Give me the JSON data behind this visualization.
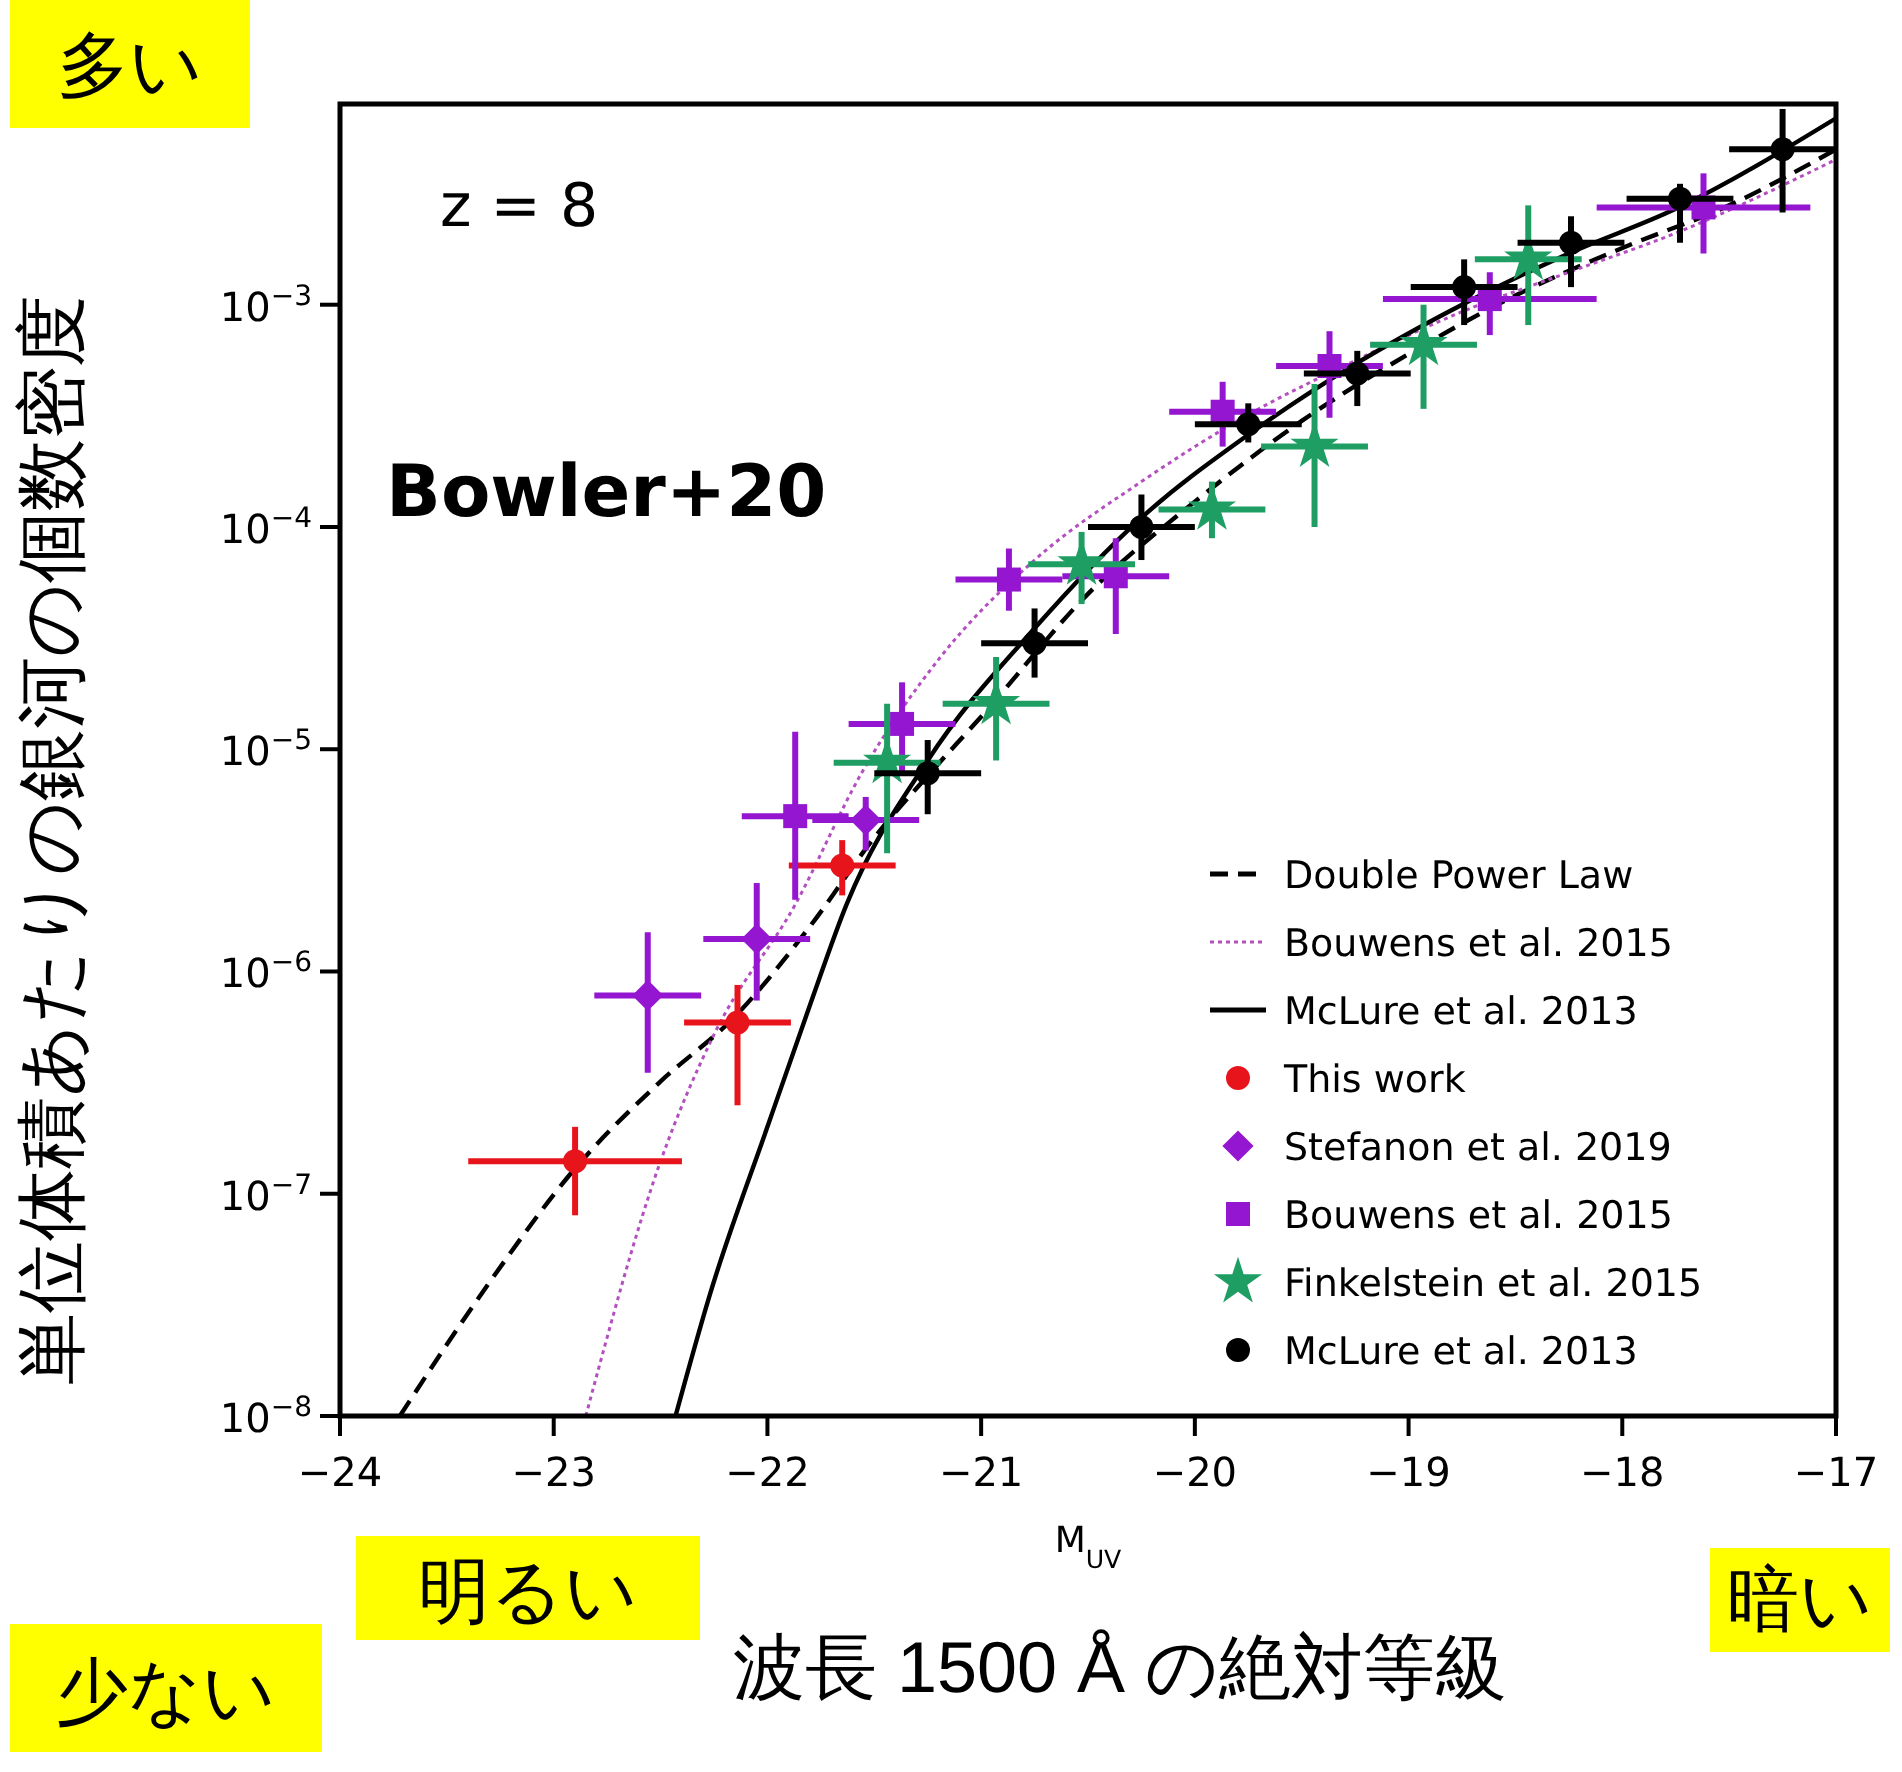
{
  "chart_data": {
    "type": "scatter",
    "xlabel": "M$_{UV}$",
    "ylabel": "単位体積あたりの銀河の個数密度",
    "annotations": [
      "z = 8",
      "Bowler+20",
      "多い",
      "少ない",
      "明るい",
      "暗い",
      "波長 1500 Å の絶対等級"
    ],
    "xlim": [
      -24,
      -17
    ],
    "xticks": [
      {
        "value": -24,
        "label": "−24"
      },
      {
        "value": -23,
        "label": "−23"
      },
      {
        "value": -22,
        "label": "−22"
      },
      {
        "value": -21,
        "label": "−21"
      },
      {
        "value": -20,
        "label": "−20"
      },
      {
        "value": -19,
        "label": "−19"
      },
      {
        "value": -18,
        "label": "−18"
      },
      {
        "value": -17,
        "label": "−17"
      }
    ],
    "ylim": [
      1e-08,
      0.008
    ],
    "log": "y",
    "yticks": [
      {
        "value": 1e-08,
        "label": "10$^{−8}$"
      },
      {
        "value": 1e-07,
        "label": "10$^{−7}$"
      },
      {
        "value": 1e-06,
        "label": "10$^{−6}$"
      },
      {
        "value": 1e-05,
        "label": "10$^{−5}$"
      },
      {
        "value": 0.0001,
        "label": "10$^{−4}$"
      },
      {
        "value": 0.001,
        "label": "10$^{−3}$"
      }
    ],
    "legend": "bottom right",
    "series": [
      {
        "name": "Double Power Law",
        "type": "line",
        "color": "#000000",
        "line_style": "dashed",
        "x": [
          -23.72,
          -23.3,
          -22.9,
          -22.5,
          -22.15,
          -21.8,
          -21.5,
          -21.25,
          -21,
          -20.5,
          -20,
          -19.5,
          -19,
          -18.5,
          -18,
          -17.5,
          -17
        ],
        "values": [
          1e-08,
          4e-08,
          1.3e-07,
          3.2e-07,
          6.3e-07,
          1.6e-06,
          4e-06,
          7.6e-06,
          1.4e-05,
          5e-05,
          0.00013,
          0.0003,
          0.0006,
          0.0011,
          0.0018,
          0.0028,
          0.005
        ]
      },
      {
        "name": "Bouwens et al. 2015",
        "type": "line",
        "color": "#b44fc0",
        "line_style": "dotted",
        "x": [
          -22.85,
          -22.5,
          -22.25,
          -21.87,
          -21.56,
          -21.19,
          -20.75,
          -20.25,
          -19.75,
          -19.25,
          -18.75,
          -18.25,
          -17.75,
          -17
        ],
        "values": [
          1e-08,
          1.4e-07,
          5.2e-07,
          2e-06,
          7.8e-06,
          2.6e-05,
          7.1e-05,
          0.00016,
          0.00032,
          0.00056,
          0.00093,
          0.0014,
          0.0021,
          0.0045
        ]
      },
      {
        "name": "McLure et al. 2013",
        "type": "line",
        "color": "#000000",
        "line_style": "solid",
        "x": [
          -22.43,
          -22.27,
          -22,
          -21.8,
          -21.63,
          -21.25,
          -20.75,
          -20.25,
          -19.75,
          -19.25,
          -18.75,
          -18.25,
          -17.75,
          -17
        ],
        "values": [
          1e-08,
          3.5e-08,
          2e-07,
          7.1e-07,
          2e-06,
          8.9e-06,
          3.5e-05,
          0.00011,
          0.00026,
          0.00054,
          0.001,
          0.0017,
          0.0027,
          0.0069
        ]
      },
      {
        "name": "This work",
        "color": "#e8141b",
        "marker": "circle",
        "x": [
          -22.9,
          -22.14,
          -21.65
        ],
        "values": [
          1.4e-07,
          5.9e-07,
          3e-06
        ],
        "errors": [
          [
            8e-08,
            2e-07
          ],
          [
            2.5e-07,
            8.7e-07
          ],
          [
            2.2e-06,
            3.9e-06
          ]
        ],
        "xerrors": [
          0.5,
          0.25,
          0.25
        ]
      },
      {
        "name": "Stefanon et al. 2019",
        "color": "#9416d0",
        "marker": "diamond",
        "x": [
          -22.56,
          -22.05,
          -21.54
        ],
        "values": [
          7.8e-07,
          1.4e-06,
          4.8e-06
        ],
        "errors": [
          [
            3.5e-07,
            1.5e-06
          ],
          [
            7.4e-07,
            2.5e-06
          ],
          [
            3.5e-06,
            6.1e-06
          ]
        ],
        "xerrors": [
          0.25,
          0.25,
          0.25
        ]
      },
      {
        "name": "Bouwens et al. 2015",
        "color": "#9416d0",
        "marker": "square",
        "x": [
          -21.87,
          -21.37,
          -20.87,
          -20.37,
          -19.87,
          -19.37,
          -18.62,
          -17.62
        ],
        "values": [
          5e-06,
          1.3e-05,
          5.8e-05,
          6e-05,
          0.00033,
          0.00053,
          0.00106,
          0.00274
        ],
        "errors": [
          [
            2.1e-06,
            1.2e-05
          ],
          [
            8e-06,
            2e-05
          ],
          [
            4.2e-05,
            8e-05
          ],
          [
            3.3e-05,
            8.9e-05
          ],
          [
            0.00023,
            0.00045
          ],
          [
            0.00031,
            0.00076
          ],
          [
            0.00073,
            0.0014
          ],
          [
            0.0017,
            0.0039
          ]
        ],
        "xerrors": [
          0.25,
          0.25,
          0.25,
          0.25,
          0.25,
          0.25,
          0.5,
          0.5
        ]
      },
      {
        "name": "Finkelstein et al. 2015",
        "color": "#1f9e64",
        "marker": "star",
        "x": [
          -21.44,
          -20.93,
          -20.53,
          -19.92,
          -19.44,
          -18.93,
          -18.44
        ],
        "values": [
          8.7e-06,
          1.6e-05,
          6.8e-05,
          0.00012,
          0.00023,
          0.00066,
          0.0016
        ],
        "errors": [
          [
            3.4e-06,
            1.6e-05
          ],
          [
            8.9e-06,
            2.6e-05
          ],
          [
            4.5e-05,
            9.5e-05
          ],
          [
            8.9e-05,
            0.00016
          ],
          [
            0.0001,
            0.00044
          ],
          [
            0.00034,
            0.001
          ],
          [
            0.00081,
            0.0028
          ]
        ],
        "xerrors": [
          0.25,
          0.25,
          0.25,
          0.25,
          0.25,
          0.25,
          0.25
        ]
      },
      {
        "name": "McLure et al. 2013",
        "color": "#000000",
        "marker": "circle",
        "x": [
          -21.25,
          -20.75,
          -20.25,
          -19.75,
          -19.24,
          -18.74,
          -18.24,
          -17.73,
          -17.25
        ],
        "values": [
          7.8e-06,
          3e-05,
          0.0001,
          0.00029,
          0.00049,
          0.0012,
          0.0019,
          0.003,
          0.005
        ],
        "errors": [
          [
            5.1e-06,
            1.1e-05
          ],
          [
            2.1e-05,
            4.3e-05
          ],
          [
            7.1e-05,
            0.00014
          ],
          [
            0.00024,
            0.00036
          ],
          [
            0.00035,
            0.00062
          ],
          [
            0.00081,
            0.0016
          ],
          [
            0.0012,
            0.0025
          ],
          [
            0.0019,
            0.0035
          ],
          [
            0.0026,
            0.0076
          ]
        ],
        "xerrors": [
          0.25,
          0.25,
          0.25,
          0.25,
          0.25,
          0.25,
          0.25,
          0.25,
          0.25
        ]
      }
    ]
  }
}
